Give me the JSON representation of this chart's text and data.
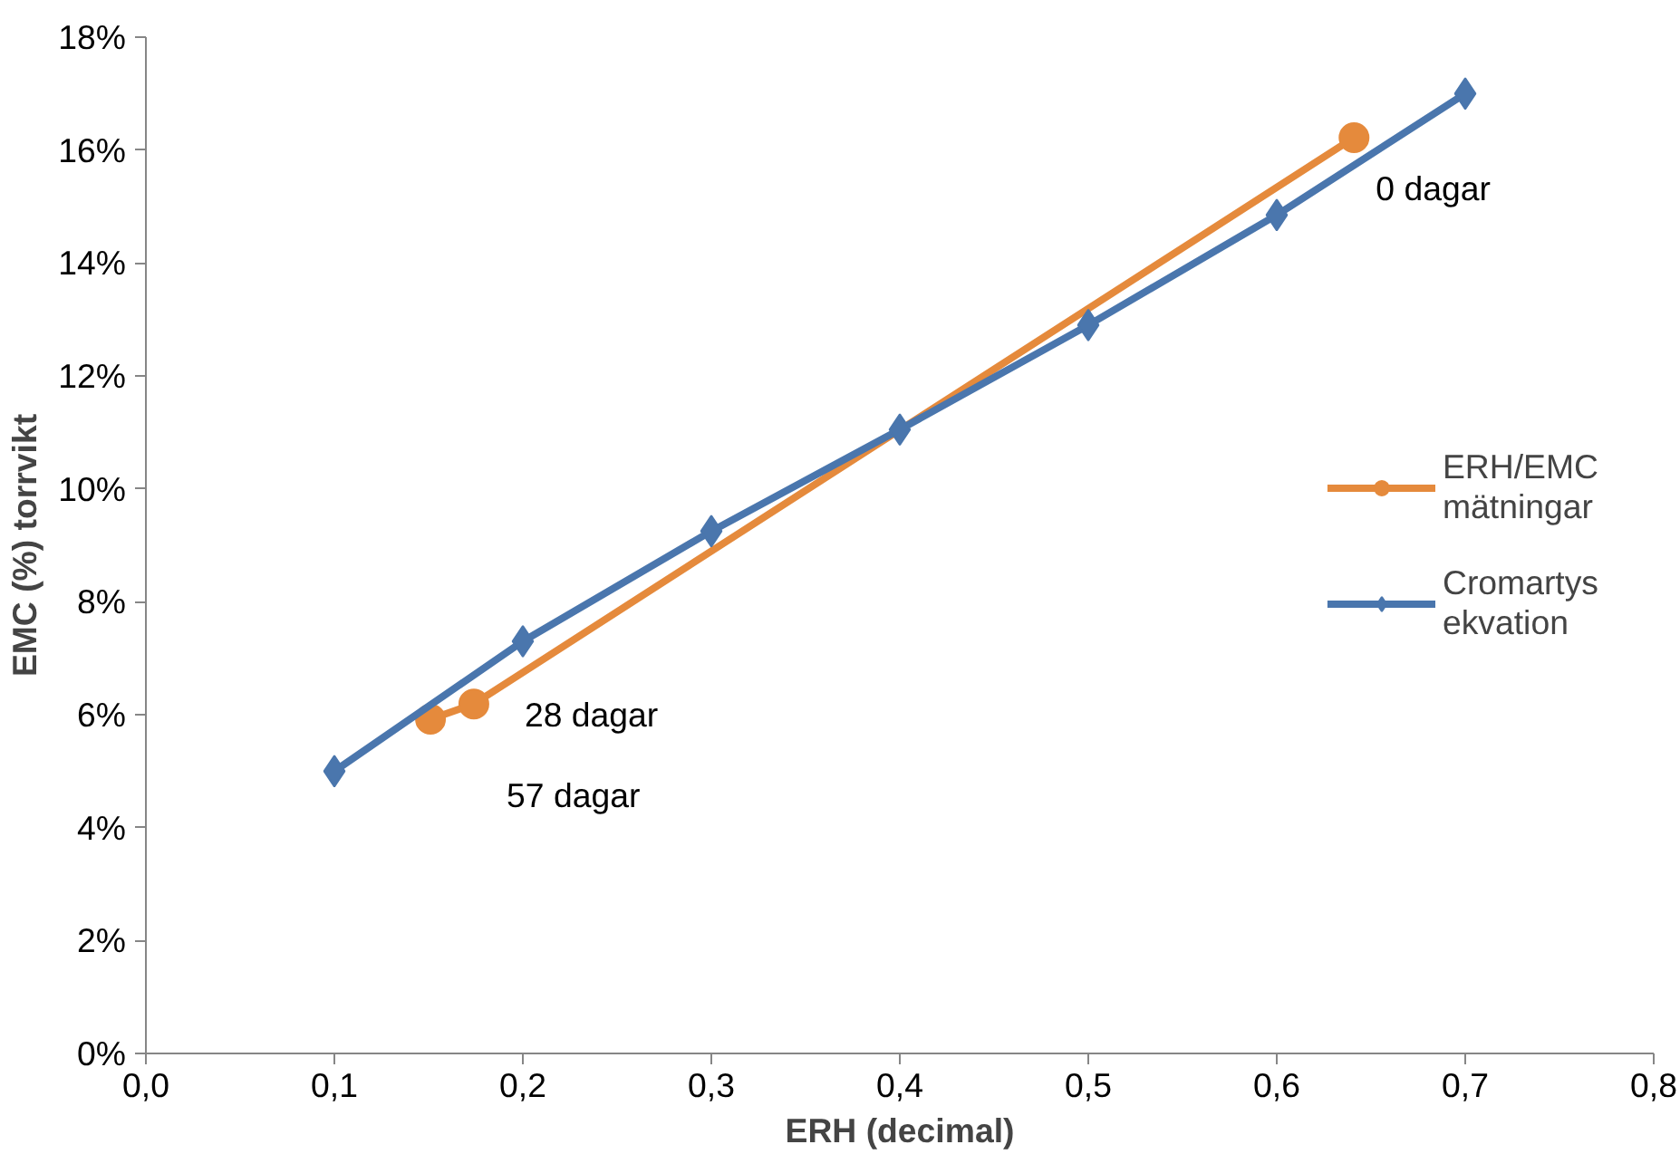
{
  "chart_data": {
    "type": "line",
    "xlabel": "ERH (decimal)",
    "ylabel": "EMC (%) torrvikt",
    "series": [
      {
        "name": "ERH/EMC mätningar",
        "color": "#e58a3c",
        "marker": "circle",
        "x": [
          0.151,
          0.174,
          0.641
        ],
        "values": [
          5.92,
          6.19,
          16.22
        ]
      },
      {
        "name": "Cromartys ekvation",
        "color": "#4a76ad",
        "marker": "diamond",
        "x": [
          0.1,
          0.2,
          0.3,
          0.4,
          0.5,
          0.6,
          0.7
        ],
        "values": [
          5.0,
          7.3,
          9.25,
          11.05,
          12.9,
          14.85,
          17.0
        ]
      }
    ],
    "xlim": [
      0,
      0.8
    ],
    "xticks": [
      {
        "value": 0,
        "label": "0,0"
      },
      {
        "value": 0.1,
        "label": "0,1"
      },
      {
        "value": 0.2,
        "label": "0,2"
      },
      {
        "value": 0.3,
        "label": "0,3"
      },
      {
        "value": 0.4,
        "label": "0,4"
      },
      {
        "value": 0.5,
        "label": "0,5"
      },
      {
        "value": 0.6,
        "label": "0,6"
      },
      {
        "value": 0.7,
        "label": "0,7"
      },
      {
        "value": 0.8,
        "label": "0,8"
      }
    ],
    "ylim": [
      0,
      18
    ],
    "yticks": [
      {
        "value": 0,
        "label": "0%"
      },
      {
        "value": 2,
        "label": "2%"
      },
      {
        "value": 4,
        "label": "4%"
      },
      {
        "value": 6,
        "label": "6%"
      },
      {
        "value": 8,
        "label": "8%"
      },
      {
        "value": 10,
        "label": "10%"
      },
      {
        "value": 12,
        "label": "12%"
      },
      {
        "value": 14,
        "label": "14%"
      },
      {
        "value": 16,
        "label": "16%"
      },
      {
        "value": 18,
        "label": "18%"
      }
    ],
    "annotations": [
      {
        "text": "0 dagar",
        "x": 0.641,
        "y": 16.22
      },
      {
        "text": "28 dagar",
        "x": 0.174,
        "y": 6.19
      },
      {
        "text": "57 dagar",
        "x": 0.151,
        "y": 5.92
      }
    ],
    "grid": false,
    "legend": "right",
    "line_style": "solid"
  }
}
